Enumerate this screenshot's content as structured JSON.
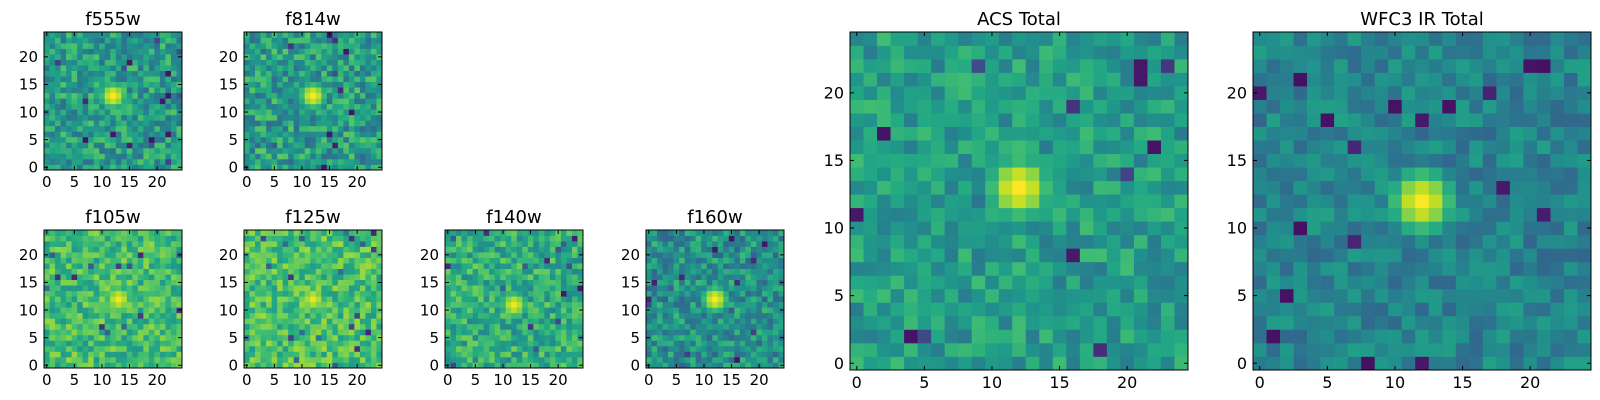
{
  "chart_data": [
    {
      "type": "heatmap",
      "title": "f555w",
      "xlim": [
        -0.5,
        24.5
      ],
      "ylim": [
        -0.5,
        24.5
      ],
      "xticks": [
        0,
        5,
        10,
        15,
        20
      ],
      "yticks": [
        0,
        5,
        10,
        15,
        20
      ],
      "xtick_labels": [
        "0",
        "5",
        "10",
        "15",
        "20"
      ],
      "ytick_labels": [
        "0",
        "5",
        "10",
        "15",
        "20"
      ],
      "colormap": "viridis",
      "source_center": [
        12,
        13
      ],
      "source_peak": 0.95,
      "background_level": 0.55,
      "noise": 0.18
    },
    {
      "type": "heatmap",
      "title": "f814w",
      "xlim": [
        -0.5,
        24.5
      ],
      "ylim": [
        -0.5,
        24.5
      ],
      "xticks": [
        0,
        5,
        10,
        15,
        20
      ],
      "yticks": [
        0,
        5,
        10,
        15,
        20
      ],
      "xtick_labels": [
        "0",
        "5",
        "10",
        "15",
        "20"
      ],
      "ytick_labels": [
        "0",
        "5",
        "10",
        "15",
        "20"
      ],
      "colormap": "viridis",
      "source_center": [
        12,
        13
      ],
      "source_peak": 0.95,
      "background_level": 0.55,
      "noise": 0.2
    },
    {
      "type": "heatmap",
      "title": "f105w",
      "xlim": [
        -0.5,
        24.5
      ],
      "ylim": [
        -0.5,
        24.5
      ],
      "xticks": [
        0,
        5,
        10,
        15,
        20
      ],
      "yticks": [
        0,
        5,
        10,
        15,
        20
      ],
      "xtick_labels": [
        "0",
        "5",
        "10",
        "15",
        "20"
      ],
      "ytick_labels": [
        "0",
        "5",
        "10",
        "15",
        "20"
      ],
      "colormap": "viridis",
      "source_center": [
        13,
        12
      ],
      "source_peak": 0.92,
      "background_level": 0.68,
      "noise": 0.16
    },
    {
      "type": "heatmap",
      "title": "f125w",
      "xlim": [
        -0.5,
        24.5
      ],
      "ylim": [
        -0.5,
        24.5
      ],
      "xticks": [
        0,
        5,
        10,
        15,
        20
      ],
      "yticks": [
        0,
        5,
        10,
        15,
        20
      ],
      "xtick_labels": [
        "0",
        "5",
        "10",
        "15",
        "20"
      ],
      "ytick_labels": [
        "0",
        "5",
        "10",
        "15",
        "20"
      ],
      "colormap": "viridis",
      "source_center": [
        12,
        12
      ],
      "source_peak": 0.9,
      "background_level": 0.7,
      "noise": 0.16
    },
    {
      "type": "heatmap",
      "title": "f140w",
      "xlim": [
        -0.5,
        24.5
      ],
      "ylim": [
        -0.5,
        24.5
      ],
      "xticks": [
        0,
        5,
        10,
        15,
        20
      ],
      "yticks": [
        0,
        5,
        10,
        15,
        20
      ],
      "xtick_labels": [
        "0",
        "5",
        "10",
        "15",
        "20"
      ],
      "ytick_labels": [
        "0",
        "5",
        "10",
        "15",
        "20"
      ],
      "colormap": "viridis",
      "source_center": [
        12,
        11
      ],
      "source_peak": 0.92,
      "background_level": 0.62,
      "noise": 0.17
    },
    {
      "type": "heatmap",
      "title": "f160w",
      "xlim": [
        -0.5,
        24.5
      ],
      "ylim": [
        -0.5,
        24.5
      ],
      "xticks": [
        0,
        5,
        10,
        15,
        20
      ],
      "yticks": [
        0,
        5,
        10,
        15,
        20
      ],
      "xtick_labels": [
        "0",
        "5",
        "10",
        "15",
        "20"
      ],
      "ytick_labels": [
        "0",
        "5",
        "10",
        "15",
        "20"
      ],
      "colormap": "viridis",
      "source_center": [
        12,
        12
      ],
      "source_peak": 0.95,
      "background_level": 0.5,
      "noise": 0.18
    },
    {
      "type": "heatmap",
      "title": "ACS Total",
      "xlim": [
        -0.5,
        24.5
      ],
      "ylim": [
        -0.5,
        24.5
      ],
      "xticks": [
        0,
        5,
        10,
        15,
        20
      ],
      "yticks": [
        0,
        5,
        10,
        15,
        20
      ],
      "xtick_labels": [
        "0",
        "5",
        "10",
        "15",
        "20"
      ],
      "ytick_labels": [
        "0",
        "5",
        "10",
        "15",
        "20"
      ],
      "colormap": "viridis",
      "source_center": [
        12,
        13
      ],
      "source_peak": 0.95,
      "background_level": 0.55,
      "noise": 0.14
    },
    {
      "type": "heatmap",
      "title": "WFC3 IR Total",
      "xlim": [
        -0.5,
        24.5
      ],
      "ylim": [
        -0.5,
        24.5
      ],
      "xticks": [
        0,
        5,
        10,
        15,
        20
      ],
      "yticks": [
        0,
        5,
        10,
        15,
        20
      ],
      "xtick_labels": [
        "0",
        "5",
        "10",
        "15",
        "20"
      ],
      "ytick_labels": [
        "0",
        "5",
        "10",
        "15",
        "20"
      ],
      "colormap": "viridis",
      "source_center": [
        12,
        12
      ],
      "source_peak": 0.95,
      "background_level": 0.45,
      "noise": 0.12
    }
  ]
}
